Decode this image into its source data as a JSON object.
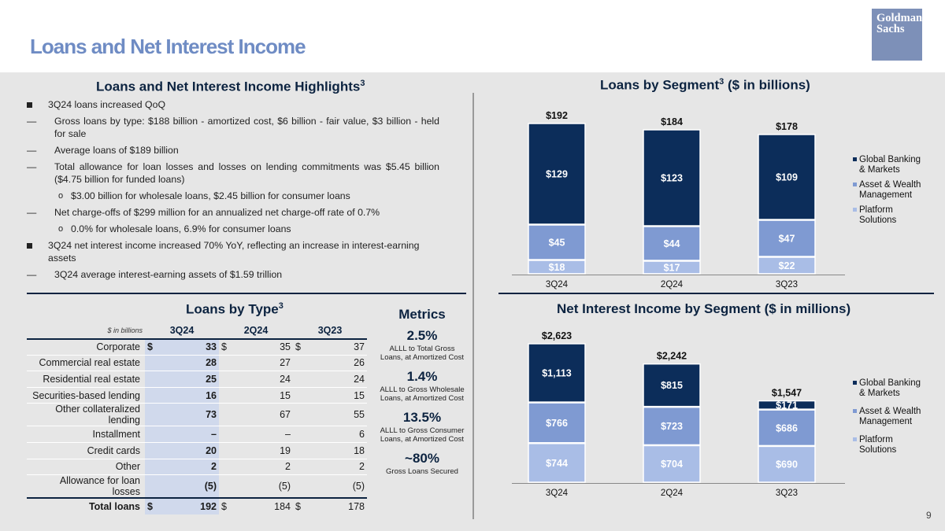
{
  "slide": {
    "title": "Loans and Net Interest Income",
    "logo_line1": "Goldman",
    "logo_line2": "Sachs",
    "page_number": "9"
  },
  "highlights": {
    "title": "Loans and Net Interest Income Highlights",
    "title_sup": "3",
    "items": [
      {
        "level": 1,
        "text": "3Q24 loans increased QoQ"
      },
      {
        "level": 2,
        "text": "Gross loans by type: $188 billion - amortized cost, $6 billion - fair value, $3 billion - held for sale"
      },
      {
        "level": 2,
        "text": "Average loans of $189 billion"
      },
      {
        "level": 2,
        "text": "Total allowance for loan losses and losses on lending commitments was $5.45 billion ($4.75 billion for funded loans)"
      },
      {
        "level": 3,
        "text": "$3.00 billion for wholesale loans, $2.45 billion for consumer loans"
      },
      {
        "level": 2,
        "text": "Net charge-offs of $299 million for an annualized net charge-off rate of 0.7%"
      },
      {
        "level": 3,
        "text": "0.0% for wholesale loans, 6.9% for consumer loans"
      },
      {
        "level": 1,
        "text": "3Q24 net interest income increased 70% YoY, reflecting an increase in interest-earning assets"
      },
      {
        "level": 2,
        "text": "3Q24 average interest-earning assets of $1.59 trillion"
      }
    ]
  },
  "loans_by_type": {
    "title": "Loans by Type",
    "title_sup": "3",
    "unit_label": "$ in billions",
    "columns": [
      "3Q24",
      "2Q24",
      "3Q23"
    ],
    "rows": [
      {
        "label": "Corporate",
        "dollar": true,
        "values": [
          "33",
          "35",
          "37"
        ]
      },
      {
        "label": "Commercial real estate",
        "dollar": false,
        "values": [
          "28",
          "27",
          "26"
        ]
      },
      {
        "label": "Residential real estate",
        "dollar": false,
        "values": [
          "25",
          "24",
          "24"
        ]
      },
      {
        "label": "Securities-based lending",
        "dollar": false,
        "values": [
          "16",
          "15",
          "15"
        ]
      },
      {
        "label": "Other collateralized lending",
        "dollar": false,
        "values": [
          "73",
          "67",
          "55"
        ]
      },
      {
        "label": "Installment",
        "dollar": false,
        "values": [
          "–",
          "–",
          "6"
        ]
      },
      {
        "label": "Credit cards",
        "dollar": false,
        "values": [
          "20",
          "19",
          "18"
        ]
      },
      {
        "label": "Other",
        "dollar": false,
        "values": [
          "2",
          "2",
          "2"
        ]
      },
      {
        "label": "Allowance for loan losses",
        "dollar": false,
        "values": [
          "(5)",
          "(5)",
          "(5)"
        ]
      }
    ],
    "total": {
      "label": "Total loans",
      "dollar": true,
      "values": [
        "192",
        "184",
        "178"
      ]
    },
    "currency_symbol": "$"
  },
  "metrics": {
    "title": "Metrics",
    "items": [
      {
        "value": "2.5%",
        "desc": "ALLL to Total Gross Loans, at Amortized Cost"
      },
      {
        "value": "1.4%",
        "desc": "ALLL to Gross Wholesale Loans, at Amortized Cost"
      },
      {
        "value": "13.5%",
        "desc": "ALLL to Gross Consumer Loans, at Amortized Cost"
      },
      {
        "value": "~80%",
        "desc": "Gross Loans Secured"
      }
    ]
  },
  "colors": {
    "gbm": "#0c2d5a",
    "awm": "#7f9ad2",
    "platform": "#a9bde6",
    "title_accent": "#6f8cc4",
    "navy": "#0c2340"
  },
  "chart_data": [
    {
      "type": "bar",
      "stacked": true,
      "title": "Loans by Segment",
      "title_sup": "3",
      "title_suffix": " ($ in billions)",
      "categories": [
        "3Q24",
        "2Q24",
        "3Q23"
      ],
      "series": [
        {
          "name": "Platform Solutions",
          "values": [
            18,
            17,
            22
          ],
          "labels": [
            "$18",
            "$17",
            "$22"
          ]
        },
        {
          "name": "Asset & Wealth Management",
          "values": [
            45,
            44,
            47
          ],
          "labels": [
            "$45",
            "$44",
            "$47"
          ]
        },
        {
          "name": "Global Banking & Markets",
          "values": [
            129,
            123,
            109
          ],
          "labels": [
            "$129",
            "$123",
            "$109"
          ]
        }
      ],
      "totals": [
        "$192",
        "$184",
        "$178"
      ],
      "legend": [
        "Global Banking & Markets",
        "Asset & Wealth Management",
        "Platform Solutions"
      ],
      "ylim": [
        0,
        200
      ]
    },
    {
      "type": "bar",
      "stacked": true,
      "title": "Net Interest Income by Segment ($ in millions)",
      "categories": [
        "3Q24",
        "2Q24",
        "3Q23"
      ],
      "series": [
        {
          "name": "Platform Solutions",
          "values": [
            744,
            704,
            690
          ],
          "labels": [
            "$744",
            "$704",
            "$690"
          ]
        },
        {
          "name": "Asset & Wealth Management",
          "values": [
            766,
            723,
            686
          ],
          "labels": [
            "$766",
            "$723",
            "$686"
          ]
        },
        {
          "name": "Global Banking & Markets",
          "values": [
            1113,
            815,
            171
          ],
          "labels": [
            "$1,113",
            "$815",
            "$171"
          ]
        }
      ],
      "totals": [
        "$2,623",
        "$2,242",
        "$1,547"
      ],
      "legend": [
        "Global Banking & Markets",
        "Asset & Wealth Management",
        "Platform Solutions"
      ],
      "ylim": [
        0,
        2800
      ]
    }
  ]
}
